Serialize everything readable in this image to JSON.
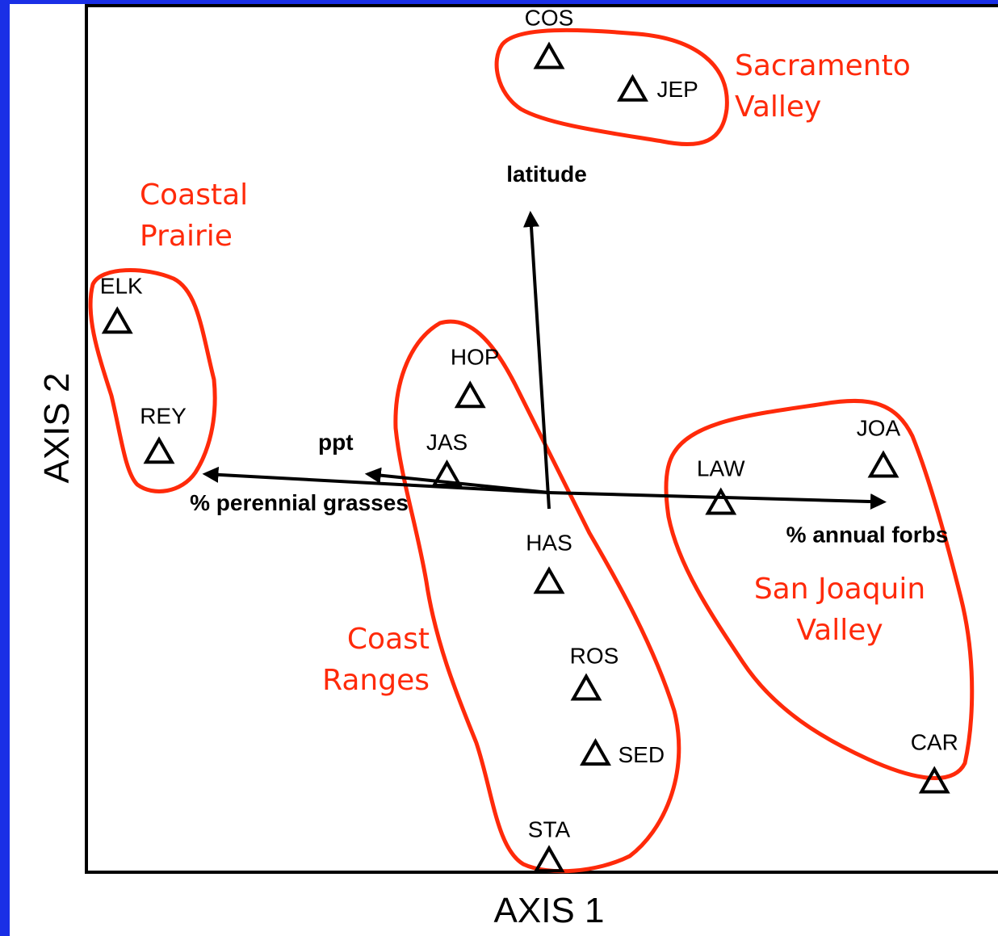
{
  "chart_data": {
    "type": "scatter",
    "xlabel": "AXIS 1",
    "ylabel": "AXIS 2",
    "xlim": [
      -1.0,
      1.0
    ],
    "ylim": [
      -1.0,
      1.0
    ],
    "grid": false,
    "marker": "open-triangle",
    "colors": {
      "background_band": "#1a2fe6",
      "groups": "#ff2a0a",
      "points": "#000000"
    },
    "points": [
      {
        "label": "COS",
        "x": 0.0,
        "y": 0.94,
        "group": "sacramento"
      },
      {
        "label": "JEP",
        "x": 0.18,
        "y": 0.87,
        "group": "sacramento"
      },
      {
        "label": "ELK",
        "x": -0.93,
        "y": 0.37,
        "group": "prairie"
      },
      {
        "label": "REY",
        "x": -0.84,
        "y": 0.09,
        "group": "prairie"
      },
      {
        "label": "HOP",
        "x": -0.17,
        "y": 0.21,
        "group": "coast_ranges"
      },
      {
        "label": "JAS",
        "x": -0.22,
        "y": 0.04,
        "group": "coast_ranges"
      },
      {
        "label": "HAS",
        "x": 0.0,
        "y": -0.19,
        "group": "coast_ranges"
      },
      {
        "label": "ROS",
        "x": 0.08,
        "y": -0.42,
        "group": "coast_ranges"
      },
      {
        "label": "SED",
        "x": 0.1,
        "y": -0.56,
        "group": "coast_ranges"
      },
      {
        "label": "STA",
        "x": 0.0,
        "y": -0.79,
        "group": "coast_ranges"
      },
      {
        "label": "LAW",
        "x": 0.37,
        "y": -0.02,
        "group": "san_joaquin"
      },
      {
        "label": "JOA",
        "x": 0.72,
        "y": 0.06,
        "group": "san_joaquin"
      },
      {
        "label": "CAR",
        "x": 0.83,
        "y": -0.62,
        "group": "san_joaquin"
      }
    ],
    "groups": [
      {
        "id": "sacramento",
        "lines": [
          "Sacramento",
          "Valley"
        ]
      },
      {
        "id": "prairie",
        "lines": [
          "Coastal",
          "Prairie"
        ]
      },
      {
        "id": "coast_ranges",
        "lines": [
          "Coast",
          "Ranges"
        ]
      },
      {
        "id": "san_joaquin",
        "lines": [
          "San Joaquin",
          "Valley"
        ]
      }
    ],
    "vectors": [
      {
        "label": "latitude",
        "x": -0.04,
        "y": 0.6
      },
      {
        "label": "ppt",
        "x": -0.39,
        "y": 0.04
      },
      {
        "label": "% perennial grasses",
        "x": -0.74,
        "y": 0.04
      },
      {
        "label": "% annual forbs",
        "x": 0.72,
        "y": -0.02
      }
    ]
  }
}
